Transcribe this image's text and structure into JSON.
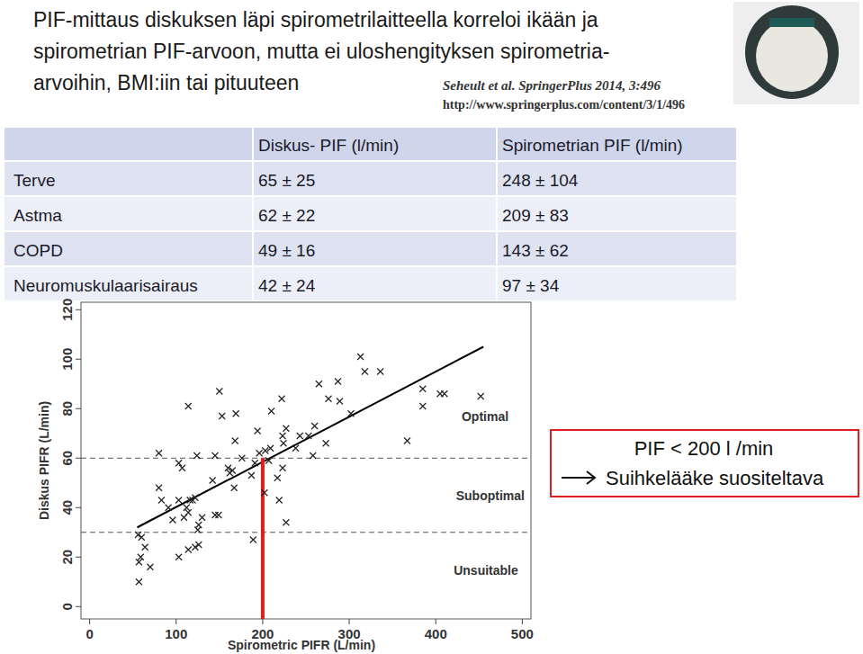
{
  "header": {
    "title_lines": [
      "PIF-mittaus diskuksen läpi spirometrilaitteella korreloi ikään ja",
      "spirometrian PIF-arvoon, mutta ei uloshengityksen spirometria-",
      "arvoihin, BMI:iin tai pituuteen"
    ],
    "citation": "Seheult et al. SpringerPlus 2014, 3:496",
    "url": "http://www.springerplus.com/content/3/1/496"
  },
  "table": {
    "columns": [
      "Diskus- PIF (l/min)",
      "Spirometrian PIF (l/min)"
    ],
    "rows": [
      [
        "Terve",
        "65 ± 25",
        "248 ± 104"
      ],
      [
        "Astma",
        "62 ± 22",
        "209 ± 83"
      ],
      [
        "COPD",
        "49 ± 16",
        "143 ± 62"
      ],
      [
        "Neuromuskulaarisairaus",
        "42 ± 24",
        "97 ± 34"
      ]
    ]
  },
  "callout": {
    "lines": [
      "PIF < 200 l /min",
      "Suihkelääke suositeltava"
    ]
  },
  "chart_data": {
    "type": "scatter",
    "x_label": "Spirometric PIFR (L/min)",
    "y_label": "Diskus PIFR (L/min)",
    "xlim": [
      -10,
      510
    ],
    "ylim": [
      -5,
      123
    ],
    "xticks": [
      0,
      100,
      200,
      300,
      400,
      500
    ],
    "yticks": [
      0,
      20,
      40,
      60,
      80,
      100,
      120
    ],
    "annotations": [
      {
        "text": "Optimal",
        "x": 457,
        "y": 75
      },
      {
        "text": "Suboptimal",
        "x": 463,
        "y": 43
      },
      {
        "text": "Unsuitable",
        "x": 458,
        "y": 13
      }
    ],
    "series": [
      {
        "type": "scatter",
        "marker": "x",
        "color": "#222222",
        "x": [
          56,
          60,
          64,
          57,
          59,
          57,
          70,
          80,
          83,
          80,
          91,
          96,
          103,
          107,
          103,
          114,
          109,
          112,
          114,
          116,
          119,
          122,
          122,
          114,
          103,
          125,
          126,
          126,
          124,
          145,
          149,
          142,
          150,
          153,
          160,
          162,
          165,
          168,
          169,
          167,
          176,
          187,
          189,
          191,
          194,
          196,
          203,
          207,
          202,
          209,
          210,
          217,
          219,
          223,
          227,
          222,
          223,
          224,
          227,
          238,
          243,
          253,
          260,
          258,
          265,
          273,
          276,
          287,
          289,
          302,
          313,
          318,
          336,
          367,
          385,
          385,
          405,
          410,
          452,
          145,
          130
        ],
        "values": [
          29,
          28,
          24,
          18,
          20,
          10,
          16,
          48,
          43,
          62,
          40,
          35,
          43,
          56,
          58,
          81,
          36,
          40,
          38,
          43,
          43,
          44,
          24,
          23,
          20,
          31,
          33,
          25,
          61,
          37,
          37,
          51,
          87,
          77,
          56,
          54,
          55,
          67,
          78,
          48,
          60,
          53,
          27,
          58,
          71,
          62,
          63,
          59,
          46,
          64,
          79,
          52,
          43,
          56,
          34,
          84,
          69,
          66,
          72,
          64,
          69,
          69,
          73,
          61,
          90,
          66,
          84,
          91,
          83,
          78,
          101,
          95,
          95,
          67,
          88,
          81,
          86,
          86,
          85,
          61,
          36
        ]
      },
      {
        "type": "line",
        "color": "#000000",
        "line_style": "solid",
        "x": [
          55,
          455
        ],
        "values": [
          32,
          105
        ]
      },
      {
        "type": "line",
        "color": "#555555",
        "line_style": "dashed",
        "x": [
          -10,
          510
        ],
        "values": [
          60,
          60
        ]
      },
      {
        "type": "line",
        "color": "#555555",
        "line_style": "dashed",
        "x": [
          -10,
          510
        ],
        "values": [
          30,
          30
        ]
      },
      {
        "type": "line",
        "color": "#e31c1c",
        "line_style": "solid",
        "x": [
          200,
          200
        ],
        "values": [
          -5,
          60
        ]
      }
    ]
  }
}
